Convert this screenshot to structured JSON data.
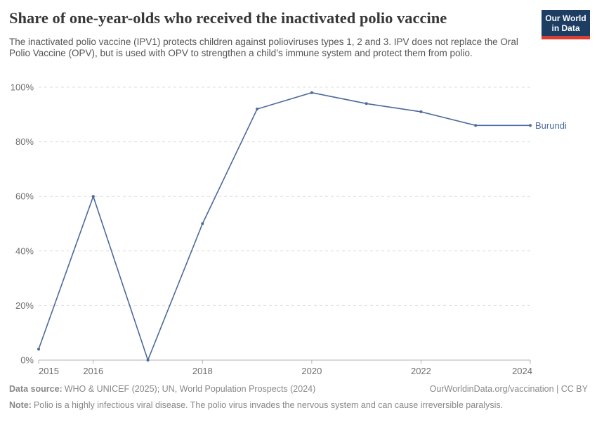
{
  "header": {
    "title": "Share of one-year-olds who received the inactivated polio vaccine",
    "subtitle": "The inactivated polio vaccine (IPV1) protects children against polioviruses types 1, 2 and 3. IPV does not replace the Oral Polio Vaccine (OPV), but is used with OPV to strengthen a child’s immune system and protect them from polio.",
    "logo": {
      "line1": "Our World",
      "line2": "in Data",
      "bg_color": "#1d3d63",
      "accent_color": "#dc3e33"
    }
  },
  "chart_data": {
    "type": "line",
    "title": "Share of one-year-olds who received the inactivated polio vaccine",
    "x": [
      2015,
      2016,
      2017,
      2018,
      2019,
      2020,
      2021,
      2022,
      2023,
      2024
    ],
    "series": [
      {
        "name": "Burundi",
        "color": "#4c6a9c",
        "values": [
          4,
          60,
          0,
          50,
          92,
          98,
          94,
          91,
          86,
          86
        ]
      }
    ],
    "xlabel": "",
    "ylabel": "",
    "xlim": [
      2015,
      2024
    ],
    "ylim": [
      0,
      100
    ],
    "xticks": [
      2015,
      2016,
      2018,
      2020,
      2022,
      2024
    ],
    "yticks": [
      0,
      20,
      40,
      60,
      80,
      100
    ],
    "ytick_suffix": "%",
    "grid": "horizontal-dashed",
    "legend_position": "end-of-line-label",
    "markers": true
  },
  "footer": {
    "datasource_label": "Data source:",
    "datasource_text": "WHO & UNICEF (2025); UN, World Population Prospects (2024)",
    "link_text": "OurWorldinData.org/vaccination | CC BY",
    "note_label": "Note:",
    "note_text": "Polio is a highly infectious viral disease. The polio virus invades the nervous system and can cause irreversible paralysis."
  }
}
